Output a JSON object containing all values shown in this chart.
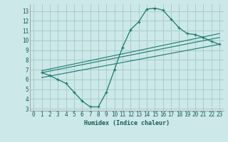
{
  "background_color": "#cce8e8",
  "grid_color": "#aacccc",
  "line_color": "#1a7a6e",
  "xlabel": "Humidex (Indice chaleur)",
  "xlim": [
    -0.5,
    23.5
  ],
  "ylim": [
    2.8,
    13.7
  ],
  "yticks": [
    3,
    4,
    5,
    6,
    7,
    8,
    9,
    10,
    11,
    12,
    13
  ],
  "xticks": [
    0,
    1,
    2,
    3,
    4,
    5,
    6,
    7,
    8,
    9,
    10,
    11,
    12,
    13,
    14,
    15,
    16,
    17,
    18,
    19,
    20,
    21,
    22,
    23
  ],
  "curve1_x": [
    1,
    2,
    3,
    4,
    5,
    6,
    7,
    8,
    9,
    10,
    11,
    12,
    13,
    14,
    15,
    16,
    17,
    18,
    19,
    20,
    21,
    22,
    23
  ],
  "curve1_y": [
    6.7,
    6.4,
    6.0,
    5.6,
    4.7,
    3.8,
    3.2,
    3.2,
    4.7,
    7.0,
    9.3,
    11.1,
    11.9,
    13.2,
    13.3,
    13.1,
    12.2,
    11.3,
    10.7,
    10.6,
    10.3,
    9.9,
    9.6
  ],
  "curve2_x": [
    1,
    23
  ],
  "curve2_y": [
    6.7,
    10.3
  ],
  "curve3_x": [
    1,
    23
  ],
  "curve3_y": [
    6.2,
    9.6
  ],
  "curve4_x": [
    1,
    23
  ],
  "curve4_y": [
    6.9,
    10.7
  ]
}
